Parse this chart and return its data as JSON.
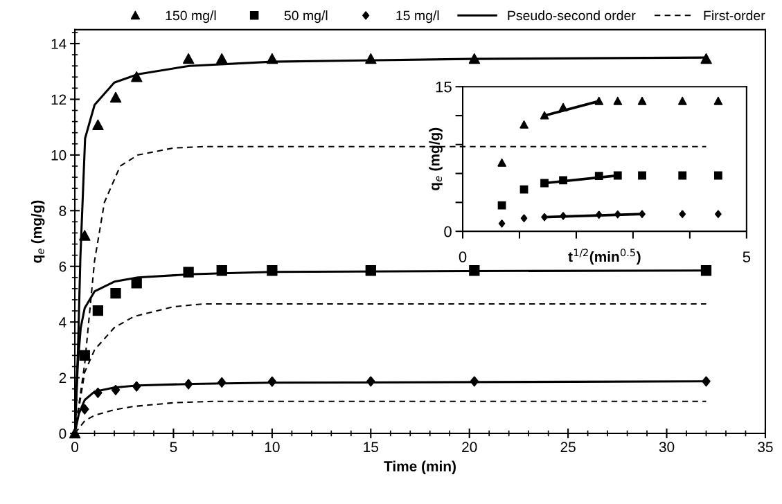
{
  "chart_data": [
    {
      "type": "scatter",
      "xlabel": "Time (min)",
      "ylabel": "q$_{e}$ (mg/g)",
      "xlim": [
        0,
        35
      ],
      "xticks": [
        0,
        5,
        10,
        15,
        20,
        25,
        30,
        35
      ],
      "ylim": [
        0,
        14.5
      ],
      "yticks": [
        0,
        2,
        4,
        6,
        8,
        10,
        12,
        14
      ],
      "legend": "top",
      "grid": false,
      "series": [
        {
          "name": "150 mg/l",
          "type": "scatter",
          "marker": "triangle",
          "color": "#000000",
          "x": [
            0,
            0.5,
            1.17,
            2.07,
            3.13,
            5.76,
            7.45,
            10,
            15,
            20.25,
            32
          ],
          "values": [
            0,
            7.1,
            11.07,
            12.06,
            12.8,
            13.45,
            13.45,
            13.45,
            13.45,
            13.45,
            13.45
          ]
        },
        {
          "name": "50 mg/l",
          "type": "scatter",
          "marker": "square",
          "color": "#000000",
          "x": [
            0.5,
            1.17,
            2.07,
            3.13,
            5.76,
            7.45,
            10,
            15,
            20.25,
            32
          ],
          "values": [
            2.8,
            4.41,
            5.03,
            5.4,
            5.79,
            5.85,
            5.85,
            5.85,
            5.85,
            5.85
          ]
        },
        {
          "name": "15 mg/l",
          "type": "scatter",
          "marker": "diamond",
          "color": "#000000",
          "x": [
            0.5,
            1.17,
            2.07,
            3.13,
            5.76,
            7.45,
            10,
            15,
            20.25,
            32
          ],
          "values": [
            0.87,
            1.46,
            1.56,
            1.69,
            1.77,
            1.83,
            1.86,
            1.87,
            1.87,
            1.87
          ]
        },
        {
          "name": "Pseudo-second order",
          "type": "line",
          "line_style": "solid",
          "color": "#000000",
          "x": [
            0,
            0.16,
            0.28,
            0.52,
            1,
            2,
            3.2,
            5.8,
            10,
            20,
            32
          ],
          "values": [
            0,
            3,
            6.3,
            10.6,
            11.8,
            12.6,
            12.9,
            13.2,
            13.35,
            13.45,
            13.5
          ]
        },
        {
          "type": "line",
          "line_style": "solid",
          "color": "#000000",
          "x": [
            0,
            0.15,
            0.3,
            0.5,
            1,
            2,
            3.2,
            6,
            10,
            20,
            32
          ],
          "values": [
            0,
            2.5,
            3.8,
            4.5,
            5.1,
            5.45,
            5.6,
            5.72,
            5.8,
            5.83,
            5.85
          ]
        },
        {
          "type": "line",
          "line_style": "solid",
          "color": "#000000",
          "x": [
            0,
            0.2,
            0.5,
            1,
            2,
            3.2,
            6,
            10,
            32
          ],
          "values": [
            0,
            0.7,
            1.2,
            1.5,
            1.65,
            1.72,
            1.78,
            1.82,
            1.87
          ]
        },
        {
          "name": "First-order",
          "type": "line",
          "line_style": "dashed",
          "color": "#000000",
          "x": [
            0,
            0.5,
            1,
            1.5,
            2.3,
            3.2,
            5,
            6.5,
            32
          ],
          "values": [
            0,
            2.5,
            6.2,
            8.3,
            9.6,
            10,
            10.25,
            10.3,
            10.3
          ]
        },
        {
          "type": "line",
          "line_style": "dashed",
          "color": "#000000",
          "x": [
            0,
            0.5,
            1,
            2,
            3,
            5,
            6.5,
            32
          ],
          "values": [
            0,
            2.2,
            3,
            3.8,
            4.2,
            4.55,
            4.65,
            4.65
          ]
        },
        {
          "type": "line",
          "line_style": "dashed",
          "color": "#000000",
          "x": [
            0,
            0.5,
            1,
            2,
            3,
            5,
            7,
            32
          ],
          "values": [
            0,
            0.45,
            0.65,
            0.85,
            0.97,
            1.1,
            1.15,
            1.15
          ]
        }
      ]
    },
    {
      "type": "scatter",
      "xlabel": "t$^{1/2}$(min$^{0.5}$)",
      "ylabel": "q$_{e}$ (mg/g)",
      "xlim": [
        0,
        5
      ],
      "xticks": [
        0,
        {
          "value": 1,
          "label": null
        },
        {
          "value": 2,
          "label": null
        },
        {
          "value": 3,
          "label": null
        },
        {
          "value": 4,
          "label": null
        },
        5
      ],
      "ylim": [
        0,
        15
      ],
      "yticks": [
        0,
        {
          "value": 3,
          "label": null
        },
        {
          "value": 6,
          "label": null
        },
        {
          "value": 9,
          "label": null
        },
        {
          "value": 12,
          "label": null
        },
        15
      ],
      "grid": false,
      "series": [
        {
          "type": "scatter",
          "marker": "triangle",
          "color": "#000000",
          "x": [
            0.69,
            1.08,
            1.44,
            1.77,
            2.4,
            2.73,
            3.16,
            3.87,
            4.5
          ],
          "values": [
            7.1,
            11.05,
            12.0,
            12.85,
            13.5,
            13.5,
            13.5,
            13.5,
            13.5
          ]
        },
        {
          "type": "scatter",
          "marker": "square",
          "color": "#000000",
          "x": [
            0.69,
            1.08,
            1.44,
            1.77,
            2.4,
            2.73,
            3.16,
            3.87,
            4.5
          ],
          "values": [
            2.7,
            4.35,
            5.0,
            5.3,
            5.74,
            5.79,
            5.79,
            5.79,
            5.79
          ]
        },
        {
          "type": "scatter",
          "marker": "diamond",
          "color": "#000000",
          "x": [
            0.69,
            1.08,
            1.44,
            1.77,
            2.4,
            2.73,
            3.16,
            3.87,
            4.5
          ],
          "values": [
            0.81,
            1.36,
            1.48,
            1.6,
            1.72,
            1.76,
            1.79,
            1.79,
            1.79
          ]
        },
        {
          "type": "line",
          "line_style": "solid",
          "color": "#000000",
          "x": [
            1.44,
            2.4
          ],
          "values": [
            12.0,
            13.5
          ]
        },
        {
          "type": "line",
          "line_style": "solid",
          "color": "#000000",
          "x": [
            1.44,
            2.73
          ],
          "values": [
            5.0,
            5.79
          ]
        },
        {
          "type": "line",
          "line_style": "solid",
          "color": "#000000",
          "x": [
            1.44,
            3.16
          ],
          "values": [
            1.48,
            1.79
          ]
        }
      ]
    }
  ]
}
